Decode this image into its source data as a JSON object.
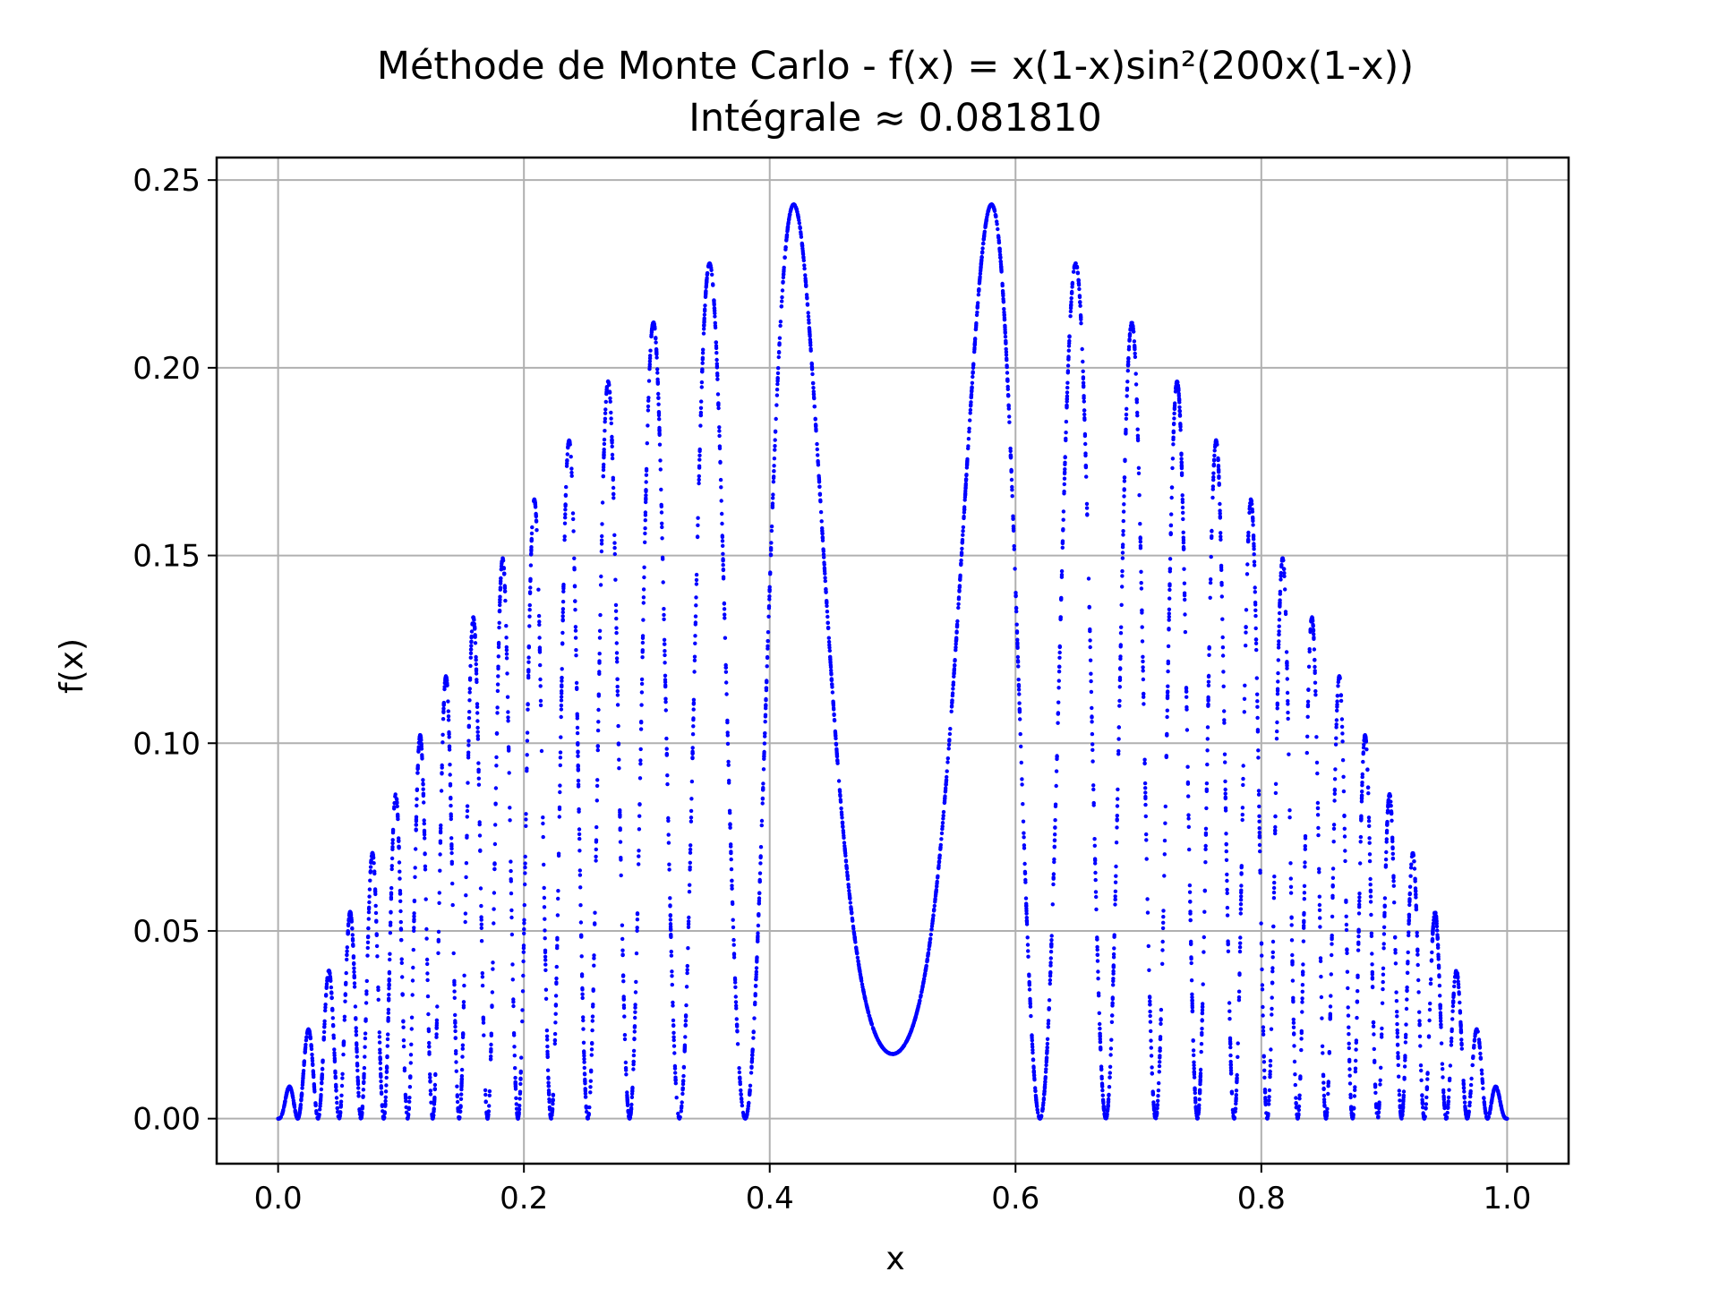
{
  "chart_data": {
    "type": "scatter",
    "title": "Méthode de Monte Carlo - f(x) = x(1-x)sin²(200x(1-x))",
    "subtitle": "Intégrale ≈ 0.081810",
    "xlabel": "x",
    "ylabel": "f(x)",
    "xlim": [
      -0.05,
      1.05
    ],
    "ylim": [
      -0.012,
      0.256
    ],
    "xticks": [
      "0.0",
      "0.2",
      "0.4",
      "0.6",
      "0.8",
      "1.0"
    ],
    "xtick_values": [
      0.0,
      0.2,
      0.4,
      0.6,
      0.8,
      1.0
    ],
    "yticks": [
      "0.00",
      "0.05",
      "0.10",
      "0.15",
      "0.20",
      "0.25"
    ],
    "ytick_values": [
      0.0,
      0.05,
      0.1,
      0.15,
      0.2,
      0.25
    ],
    "grid": true,
    "series": [
      {
        "function": "x*(1-x)*sin(200*x*(1-x))^2",
        "x_range": [
          0,
          1
        ],
        "color": "#0000ff",
        "point_count": 6000
      }
    ]
  }
}
